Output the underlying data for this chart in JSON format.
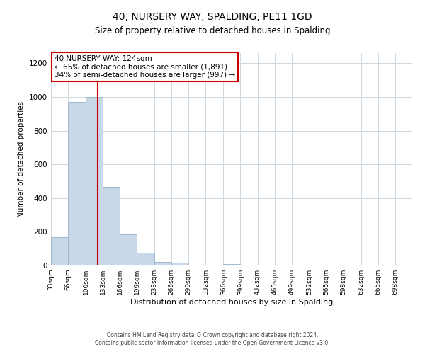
{
  "title": "40, NURSERY WAY, SPALDING, PE11 1GD",
  "subtitle": "Size of property relative to detached houses in Spalding",
  "xlabel": "Distribution of detached houses by size in Spalding",
  "ylabel": "Number of detached properties",
  "bar_labels": [
    "33sqm",
    "66sqm",
    "100sqm",
    "133sqm",
    "166sqm",
    "199sqm",
    "233sqm",
    "266sqm",
    "299sqm",
    "332sqm",
    "366sqm",
    "399sqm",
    "432sqm",
    "465sqm",
    "499sqm",
    "532sqm",
    "565sqm",
    "598sqm",
    "632sqm",
    "665sqm",
    "698sqm"
  ],
  "bar_values": [
    170,
    970,
    1000,
    465,
    185,
    75,
    22,
    15,
    0,
    0,
    10,
    0,
    0,
    0,
    0,
    0,
    0,
    0,
    0,
    0,
    0
  ],
  "bar_color": "#c8d8e8",
  "bar_edgecolor": "#a0b8cc",
  "property_line_x": 124,
  "bin_edges": [
    33,
    66,
    100,
    133,
    166,
    199,
    233,
    266,
    299,
    332,
    366,
    399,
    432,
    465,
    499,
    532,
    565,
    598,
    632,
    665,
    698,
    731
  ],
  "ylim": [
    0,
    1260
  ],
  "yticks": [
    0,
    200,
    400,
    600,
    800,
    1000,
    1200
  ],
  "annotation_title": "40 NURSERY WAY: 124sqm",
  "annotation_line1": "← 65% of detached houses are smaller (1,891)",
  "annotation_line2": "34% of semi-detached houses are larger (997) →",
  "annotation_box_color": "#ffffff",
  "annotation_box_edgecolor": "#cc0000",
  "red_line_color": "#cc0000",
  "footer_line1": "Contains HM Land Registry data © Crown copyright and database right 2024.",
  "footer_line2": "Contains public sector information licensed under the Open Government Licence v3.0.",
  "background_color": "#ffffff",
  "grid_color": "#d0d8e0"
}
